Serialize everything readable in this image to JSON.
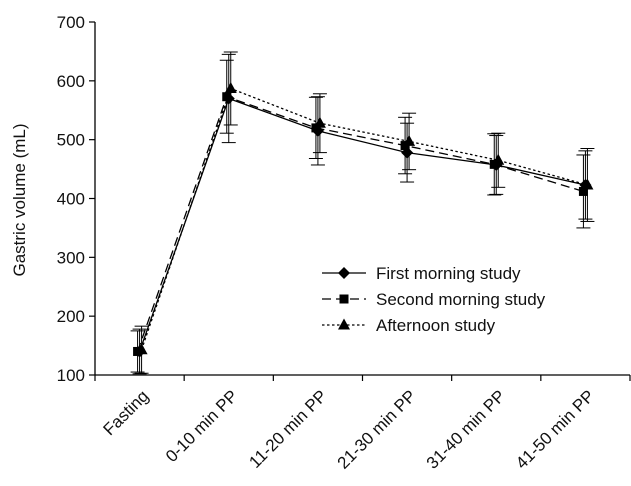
{
  "chart_data": {
    "type": "line",
    "title": "",
    "xlabel": "",
    "ylabel": "Gastric volume (mL)",
    "ylim": [
      100,
      700
    ],
    "yticks": [
      100,
      200,
      300,
      400,
      500,
      600,
      700
    ],
    "categories": [
      "Fasting",
      "0-10 min PP",
      "11-20 min PP",
      "21-30 min PP",
      "31-40 min PP",
      "41-50 min PP"
    ],
    "grid": false,
    "legend_position": "lower-right",
    "series": [
      {
        "name": "First morning study",
        "marker": "diamond",
        "line_style": "solid",
        "values": [
          140,
          570,
          515,
          478,
          457,
          423
        ],
        "error": [
          38,
          75,
          58,
          50,
          50,
          58
        ]
      },
      {
        "name": "Second morning study",
        "marker": "square",
        "line_style": "dashed",
        "values": [
          140,
          573,
          520,
          490,
          458,
          412
        ],
        "error": [
          35,
          62,
          52,
          48,
          52,
          62
        ]
      },
      {
        "name": "Afternoon study",
        "marker": "triangle",
        "line_style": "dotted",
        "values": [
          143,
          587,
          528,
          497,
          465,
          423
        ],
        "error": [
          40,
          62,
          50,
          48,
          46,
          62
        ]
      }
    ]
  }
}
